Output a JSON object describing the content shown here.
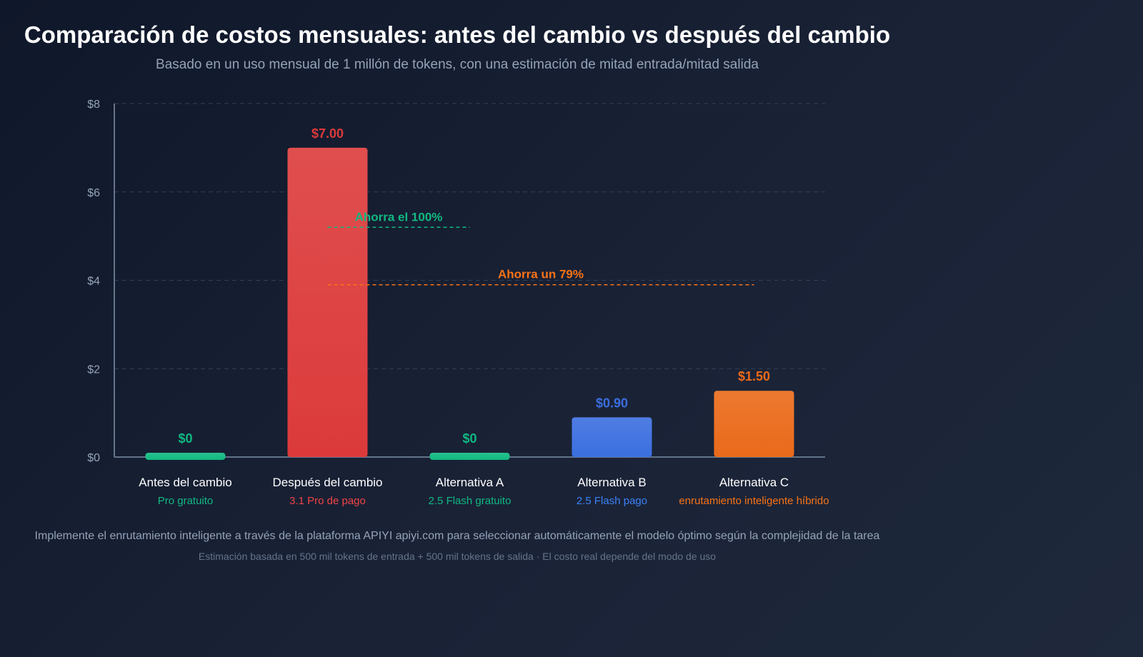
{
  "chart_data": {
    "type": "bar",
    "title": "Comparación de costos mensuales: antes del cambio vs después del cambio",
    "subtitle": "Basado en un uso mensual de 1 millón de tokens, con una estimación de mitad entrada/mitad salida",
    "ylim": [
      0,
      8
    ],
    "yticks": [
      {
        "value": 0,
        "label": "$0"
      },
      {
        "value": 2,
        "label": "$2"
      },
      {
        "value": 4,
        "label": "$4"
      },
      {
        "value": 6,
        "label": "$6"
      },
      {
        "value": 8,
        "label": "$8"
      }
    ],
    "grid": true,
    "categories": [
      "Antes del cambio",
      "Después del cambio",
      "Alternativa A",
      "Alternativa B",
      "Alternativa C"
    ],
    "sublabels": [
      "Pro gratuito",
      "3.1 Pro de pago",
      "2.5 Flash gratuito",
      "2.5 Flash pago",
      "enrutamiento inteligente híbrido"
    ],
    "values": [
      0,
      7.0,
      0,
      0.9,
      1.5
    ],
    "value_labels": [
      "$0",
      "$7.00",
      "$0",
      "$0.90",
      "$1.50"
    ],
    "colors": [
      "#10b981",
      "#dc3a3a",
      "#10b981",
      "#3b6fe0",
      "#ea6a1a"
    ],
    "annotations": [
      {
        "text": "Ahorra el 100%",
        "value": 5.2,
        "from": 1,
        "to": 2,
        "color": "#10b981"
      },
      {
        "text": "Ahorra un 79%",
        "value": 3.9,
        "from": 1,
        "to": 4,
        "color": "#f97316"
      }
    ],
    "footnote": "Implemente el enrutamiento inteligente a través de la plataforma APIYI apiyi.com para seleccionar automáticamente el modelo óptimo según la complejidad de la tarea",
    "note": "Estimación basada en 500 mil tokens de entrada + 500 mil tokens de salida · El costo real depende del modo de uso"
  }
}
